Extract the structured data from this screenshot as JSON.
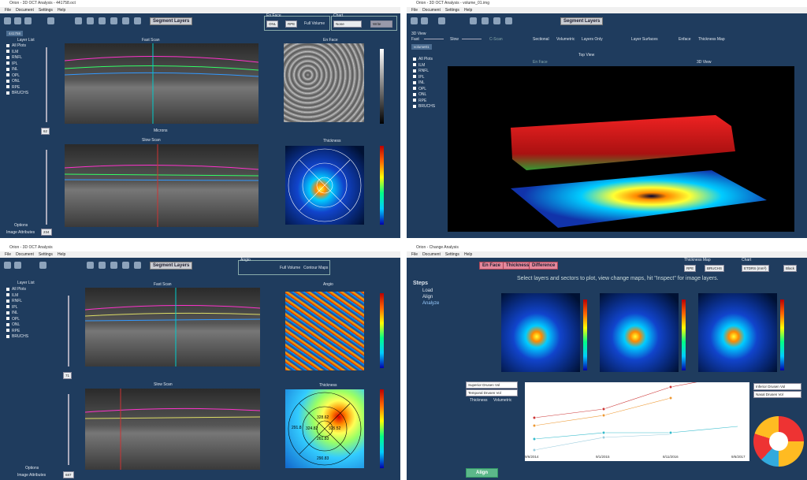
{
  "windows": [
    {
      "title": "Orion - 3D OCT Analysis - 441758.oct",
      "menu": [
        "File",
        "Document",
        "Settings",
        "Help"
      ],
      "button": "Segment Layers",
      "group": "En Face",
      "from": "ONL",
      "to": "RPE",
      "full_volume": "Full Volume",
      "chart": "Chart",
      "chart_select": "None",
      "chart_button": "Write",
      "tab": "441758",
      "layer_list": "Layer List",
      "layers": [
        "All Plots",
        "ILM",
        "RNFL",
        "IPL",
        "INL",
        "OPL",
        "ONL",
        "RPE",
        "BRUCHS"
      ],
      "panels": [
        "Fast Scan",
        "En Face",
        "Slow Scan",
        "Thickness"
      ],
      "axis": "Microns",
      "sliders": [
        "62",
        "234"
      ],
      "footer": [
        "Options",
        "Image Attributes"
      ]
    },
    {
      "title": "Orion - 3D OCT Analysis - volume_01.img",
      "menu": [
        "File",
        "Document",
        "Settings",
        "Help"
      ],
      "button": "Segment Layers",
      "group": "3D View",
      "controls": [
        "Fast",
        "Slow",
        "C-Scan",
        "Sectional",
        "Volumetric",
        "Layers Only",
        "Layer Surfaces",
        "Enface",
        "Thickness Map"
      ],
      "tab": "volume01",
      "layers": [
        "All Plots",
        "ILM",
        "RNFL",
        "IPL",
        "INL",
        "OPL",
        "ONL",
        "RPE",
        "BRUCHS"
      ],
      "panels": [
        "Top View",
        "En Face",
        "3D View"
      ]
    },
    {
      "title": "Orion - 3D OCT Analysis",
      "menu": [
        "File",
        "Document",
        "Settings",
        "Help"
      ],
      "button": "Segment Layers",
      "group": "Angio",
      "full_volume": "Full Volume",
      "contour": "Contour Maps",
      "layer_list": "Layer List",
      "layers": [
        "All Plots",
        "ILM",
        "RNFL",
        "IPL",
        "INL",
        "OPL",
        "ONL",
        "RPE",
        "BRUCHS"
      ],
      "panels": [
        "Fast Scan",
        "Angio",
        "Slow Scan",
        "Thickness"
      ],
      "sectors": [
        "291.8",
        "328.62",
        "324.82",
        "325.52",
        "261.83",
        "290.83"
      ],
      "sliders": [
        "71",
        "687"
      ],
      "footer": [
        "Options",
        "Image Attributes"
      ]
    },
    {
      "title": "Orion - Change Analysis",
      "menu": [
        "File",
        "Document",
        "Settings",
        "Help"
      ],
      "tabs": [
        "En Face",
        "Thickness",
        "Difference"
      ],
      "thickness_map": "Thickness Map",
      "from": "RPE",
      "to": "BRUCHS",
      "chart": "Chart",
      "chart_select": "ETDRS (mm³)",
      "color": "Black",
      "instruction": "Select layers and sectors to plot, view change maps, hit \"Inspect\" for image layers.",
      "steps_title": "Steps",
      "steps": [
        "Load",
        "Align",
        "Analyze"
      ],
      "dates": [
        "9/6/2014",
        "9/1/2015",
        "8/11/2016",
        "9/6/2017"
      ],
      "left_selects": [
        "Superior Drusen Vol",
        "Temporal Drusen Vol"
      ],
      "radios": [
        "Thickness",
        "Volumetric"
      ],
      "right_selects": [
        "Inferior Drusen Vol",
        "Nasal Drusen Vol"
      ],
      "align": "Align"
    }
  ]
}
